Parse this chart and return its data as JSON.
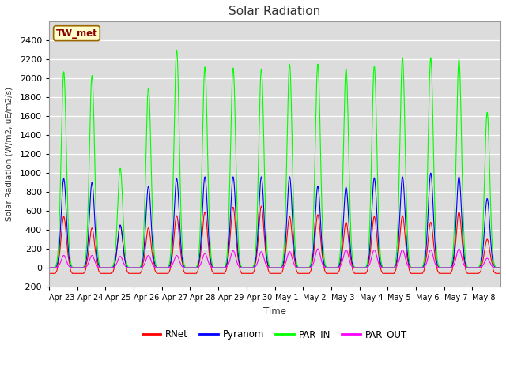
{
  "title": "Solar Radiation",
  "ylabel": "Solar Radiation (W/m2, uE/m2/s)",
  "xlabel": "Time",
  "ylim": [
    -200,
    2600
  ],
  "yticks": [
    -200,
    0,
    200,
    400,
    600,
    800,
    1000,
    1200,
    1400,
    1600,
    1800,
    2000,
    2200,
    2400
  ],
  "station_label": "TW_met",
  "colors": {
    "RNet": "#ff0000",
    "Pyranom": "#0000ff",
    "PAR_IN": "#00ff00",
    "PAR_OUT": "#ff00ff"
  },
  "background_color": "#dcdcdc",
  "fig_background": "#ffffff",
  "n_days": 16,
  "x_tick_labels": [
    "Apr 23",
    "Apr 24",
    "Apr 25",
    "Apr 26",
    "Apr 27",
    "Apr 28",
    "Apr 29",
    "Apr 30",
    "May 1",
    "May 2",
    "May 3",
    "May 4",
    "May 5",
    "May 6",
    "May 7",
    "May 8"
  ],
  "daily_peaks": {
    "RNet": [
      540,
      420,
      450,
      420,
      550,
      590,
      640,
      650,
      540,
      560,
      480,
      540,
      550,
      480,
      590,
      300
    ],
    "Pyranom": [
      940,
      900,
      450,
      860,
      940,
      960,
      960,
      960,
      960,
      860,
      850,
      950,
      960,
      1000,
      960,
      730
    ],
    "PAR_IN": [
      2070,
      2030,
      1050,
      1900,
      2300,
      2120,
      2110,
      2100,
      2150,
      2150,
      2100,
      2130,
      2220,
      2220,
      2200,
      1640
    ],
    "PAR_OUT": [
      130,
      130,
      120,
      130,
      130,
      150,
      180,
      170,
      170,
      200,
      190,
      190,
      190,
      190,
      200,
      100
    ]
  }
}
